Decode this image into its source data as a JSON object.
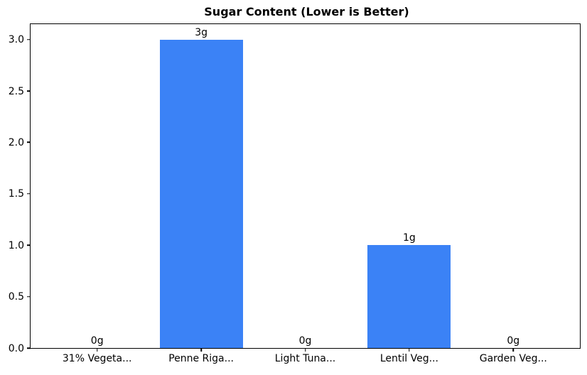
{
  "chart_data": {
    "type": "bar",
    "title": "Sugar Content (Lower is Better)",
    "categories": [
      "31% Vegeta...",
      "Penne Riga...",
      "Light Tuna...",
      "Lentil Veg...",
      "Garden Veg..."
    ],
    "values": [
      0,
      3,
      0,
      1,
      0
    ],
    "value_labels": [
      "0g",
      "3g",
      "0g",
      "1g",
      "0g"
    ],
    "xlabel": "",
    "ylabel": "",
    "ylim": [
      0,
      3.15
    ],
    "xlim": [
      -0.64,
      4.64
    ],
    "yticks": [
      0,
      0.5,
      1,
      1.5,
      2,
      2.5,
      3
    ],
    "ytick_labels": [
      "0.0",
      "0.5",
      "1.0",
      "1.5",
      "2.0",
      "2.5",
      "3.0"
    ],
    "bar_color": "#3b82f6",
    "bar_width_units": 0.8,
    "grid": false,
    "legend": null
  }
}
